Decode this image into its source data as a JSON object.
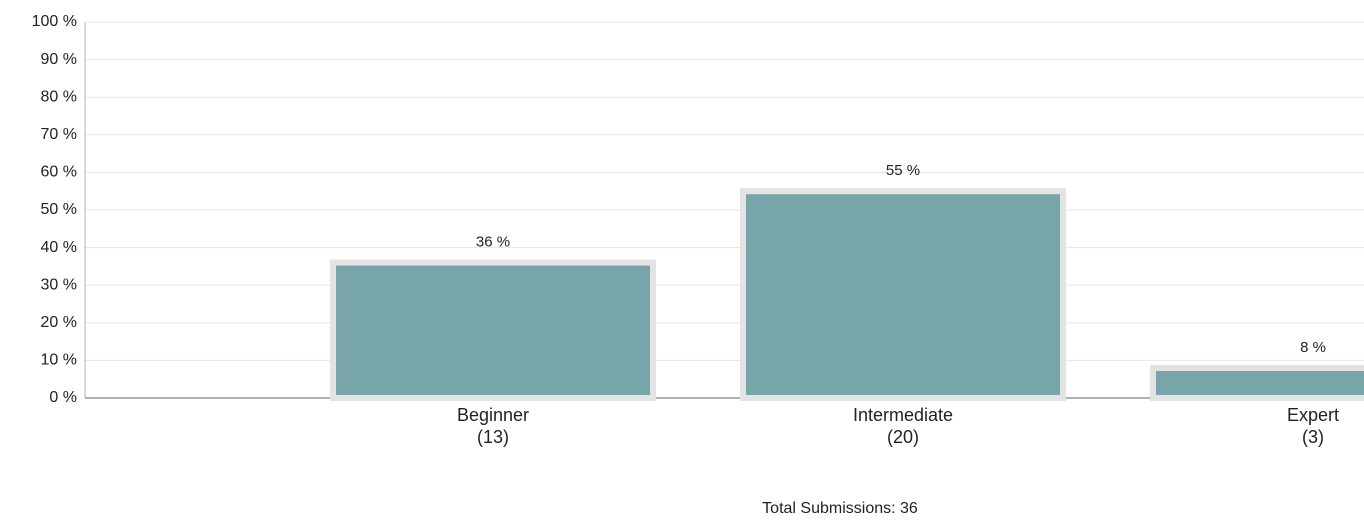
{
  "chart_data": {
    "type": "bar",
    "categories": [
      "Beginner",
      "Intermediate",
      "Expert"
    ],
    "category_counts": [
      "(13)",
      "(20)",
      "(3)"
    ],
    "values": [
      36,
      55,
      8
    ],
    "value_labels": [
      "36 %",
      "55 %",
      "8 %"
    ],
    "color": "#78a5aa",
    "ylim": [
      0,
      100
    ],
    "yticks": [
      {
        "value": 0,
        "label": "0 %"
      },
      {
        "value": 10,
        "label": "10 %"
      },
      {
        "value": 20,
        "label": "20 %"
      },
      {
        "value": 30,
        "label": "30 %"
      },
      {
        "value": 40,
        "label": "40 %"
      },
      {
        "value": 50,
        "label": "50 %"
      },
      {
        "value": 60,
        "label": "60 %"
      },
      {
        "value": 70,
        "label": "70 %"
      },
      {
        "value": 80,
        "label": "80 %"
      },
      {
        "value": 90,
        "label": "90 %"
      },
      {
        "value": 100,
        "label": "100 %"
      }
    ],
    "grid": true,
    "footer": "Total Submissions: 36"
  }
}
